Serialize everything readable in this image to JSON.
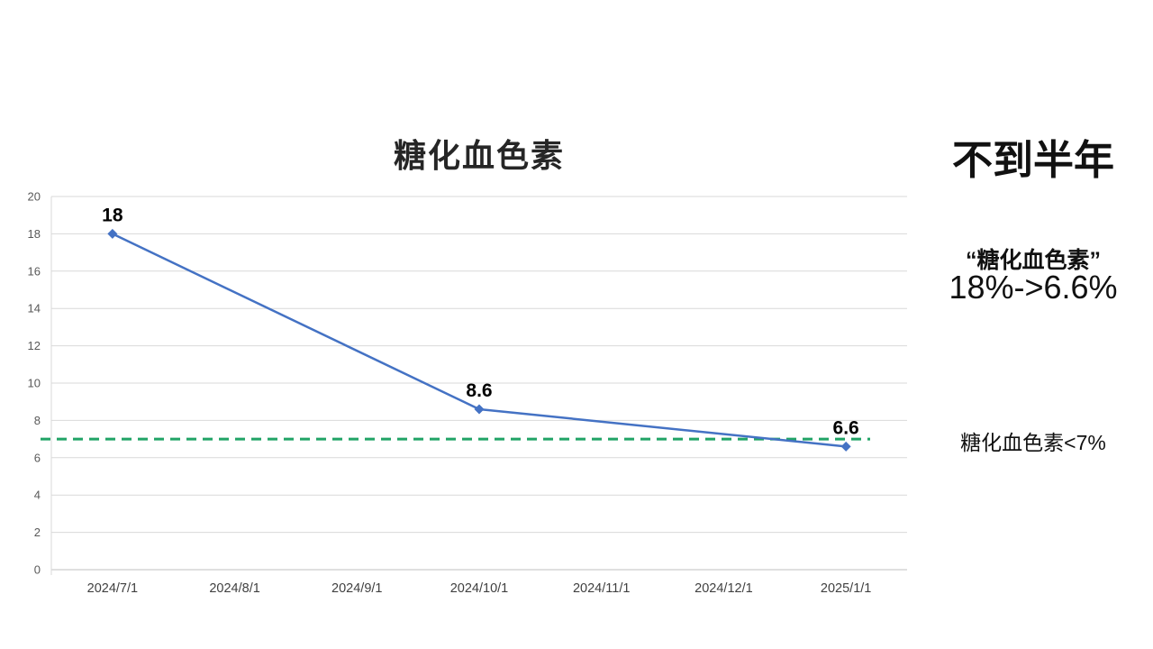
{
  "chart_title": "糖化血色素",
  "right_panel": {
    "headline": "不到半年",
    "quote_line": "“糖化血色素”",
    "change_line": "18%->6.6%",
    "target_line": "糖化血色素<7%"
  },
  "chart_data": {
    "type": "line",
    "title": "糖化血色素",
    "categories": [
      "2024/7/1",
      "2024/8/1",
      "2024/9/1",
      "2024/10/1",
      "2024/11/1",
      "2024/12/1",
      "2025/1/1"
    ],
    "yticks": [
      0,
      2,
      4,
      6,
      8,
      10,
      12,
      14,
      16,
      18,
      20
    ],
    "ylim": [
      0,
      20
    ],
    "grid": true,
    "legend": "none",
    "series": [
      {
        "name": "糖化血色素",
        "color": "#4472C4",
        "marker": "diamond",
        "points": [
          {
            "x": "2024/7/1",
            "y": 18,
            "label": "18"
          },
          {
            "x": "2024/10/1",
            "y": 8.6,
            "label": "8.6"
          },
          {
            "x": "2025/1/1",
            "y": 6.6,
            "label": "6.6"
          }
        ]
      }
    ],
    "reference_line": {
      "y": 7,
      "style": "dashed",
      "color": "#21A366"
    }
  },
  "colors": {
    "series_blue": "#4472C4",
    "reference_green": "#21A366",
    "gridline": "#D9D9D9",
    "axis_line": "#BFBFBF",
    "ytick_text": "#595959",
    "xtick_text": "#404040",
    "data_label": "#000000",
    "title_text": "#262626"
  }
}
